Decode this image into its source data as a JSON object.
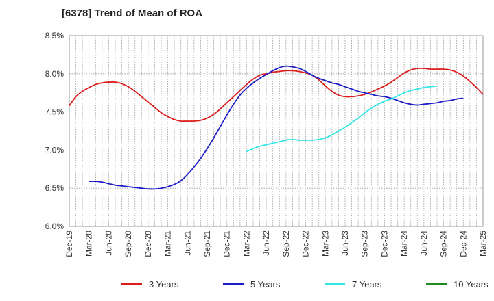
{
  "chart_data": {
    "type": "line",
    "title": "[6378]  Trend of Mean of ROA",
    "xlabel": "",
    "ylabel": "",
    "x_ticks": [
      "Dec-19",
      "Mar-20",
      "Jun-20",
      "Sep-20",
      "Dec-20",
      "Mar-21",
      "Jun-21",
      "Sep-21",
      "Dec-21",
      "Mar-22",
      "Jun-22",
      "Sep-22",
      "Dec-22",
      "Mar-23",
      "Jun-23",
      "Sep-23",
      "Dec-23",
      "Mar-24",
      "Jun-24",
      "Sep-24",
      "Dec-24",
      "Mar-25"
    ],
    "y_ticks": [
      "6.0%",
      "6.5%",
      "7.0%",
      "7.5%",
      "8.0%",
      "8.5%"
    ],
    "ylim": [
      6.0,
      8.5
    ],
    "grid": true,
    "legend_position": "bottom",
    "series": [
      {
        "name": "3 Years",
        "color": "#dd1c1c",
        "start_index": 0,
        "values": [
          7.58,
          7.7,
          7.77,
          7.82,
          7.86,
          7.88,
          7.89,
          7.89,
          7.87,
          7.83,
          7.77,
          7.7,
          7.63,
          7.56,
          7.49,
          7.44,
          7.4,
          7.38,
          7.38,
          7.38,
          7.39,
          7.42,
          7.47,
          7.54,
          7.62,
          7.7,
          7.78,
          7.86,
          7.93,
          7.98,
          8.0,
          8.02,
          8.03,
          8.04,
          8.04,
          8.03,
          8.01,
          7.98,
          7.92,
          7.84,
          7.77,
          7.72,
          7.7,
          7.7,
          7.71,
          7.73,
          7.76,
          7.8,
          7.84,
          7.89,
          7.95,
          8.01,
          8.05,
          8.07,
          8.07,
          8.06,
          8.06,
          8.06,
          8.05,
          8.02,
          7.97,
          7.9,
          7.82,
          7.73
        ]
      },
      {
        "name": "5 Years",
        "color": "#1c1cc8",
        "start_index": 3,
        "values": [
          6.59,
          6.59,
          6.58,
          6.56,
          6.54,
          6.53,
          6.52,
          6.51,
          6.5,
          6.49,
          6.49,
          6.5,
          6.52,
          6.55,
          6.6,
          6.68,
          6.78,
          6.89,
          7.02,
          7.16,
          7.31,
          7.46,
          7.6,
          7.72,
          7.81,
          7.88,
          7.94,
          7.99,
          8.04,
          8.08,
          8.1,
          8.09,
          8.07,
          8.03,
          7.98,
          7.94,
          7.91,
          7.88,
          7.86,
          7.83,
          7.8,
          7.77,
          7.75,
          7.73,
          7.71,
          7.7,
          7.68,
          7.65,
          7.62,
          7.6,
          7.59,
          7.6,
          7.61,
          7.62,
          7.64,
          7.65,
          7.67,
          7.68
        ]
      },
      {
        "name": "7 Years",
        "color": "#33e6e6",
        "start_index": 27,
        "values": [
          6.98,
          7.02,
          7.05,
          7.07,
          7.09,
          7.11,
          7.13,
          7.14,
          7.13,
          7.13,
          7.13,
          7.14,
          7.16,
          7.2,
          7.25,
          7.3,
          7.36,
          7.42,
          7.49,
          7.55,
          7.6,
          7.64,
          7.67,
          7.71,
          7.75,
          7.78,
          7.8,
          7.82,
          7.83,
          7.84
        ]
      },
      {
        "name": "10 Years",
        "color": "#1f8a1f",
        "start_index": 0,
        "values": []
      }
    ]
  }
}
